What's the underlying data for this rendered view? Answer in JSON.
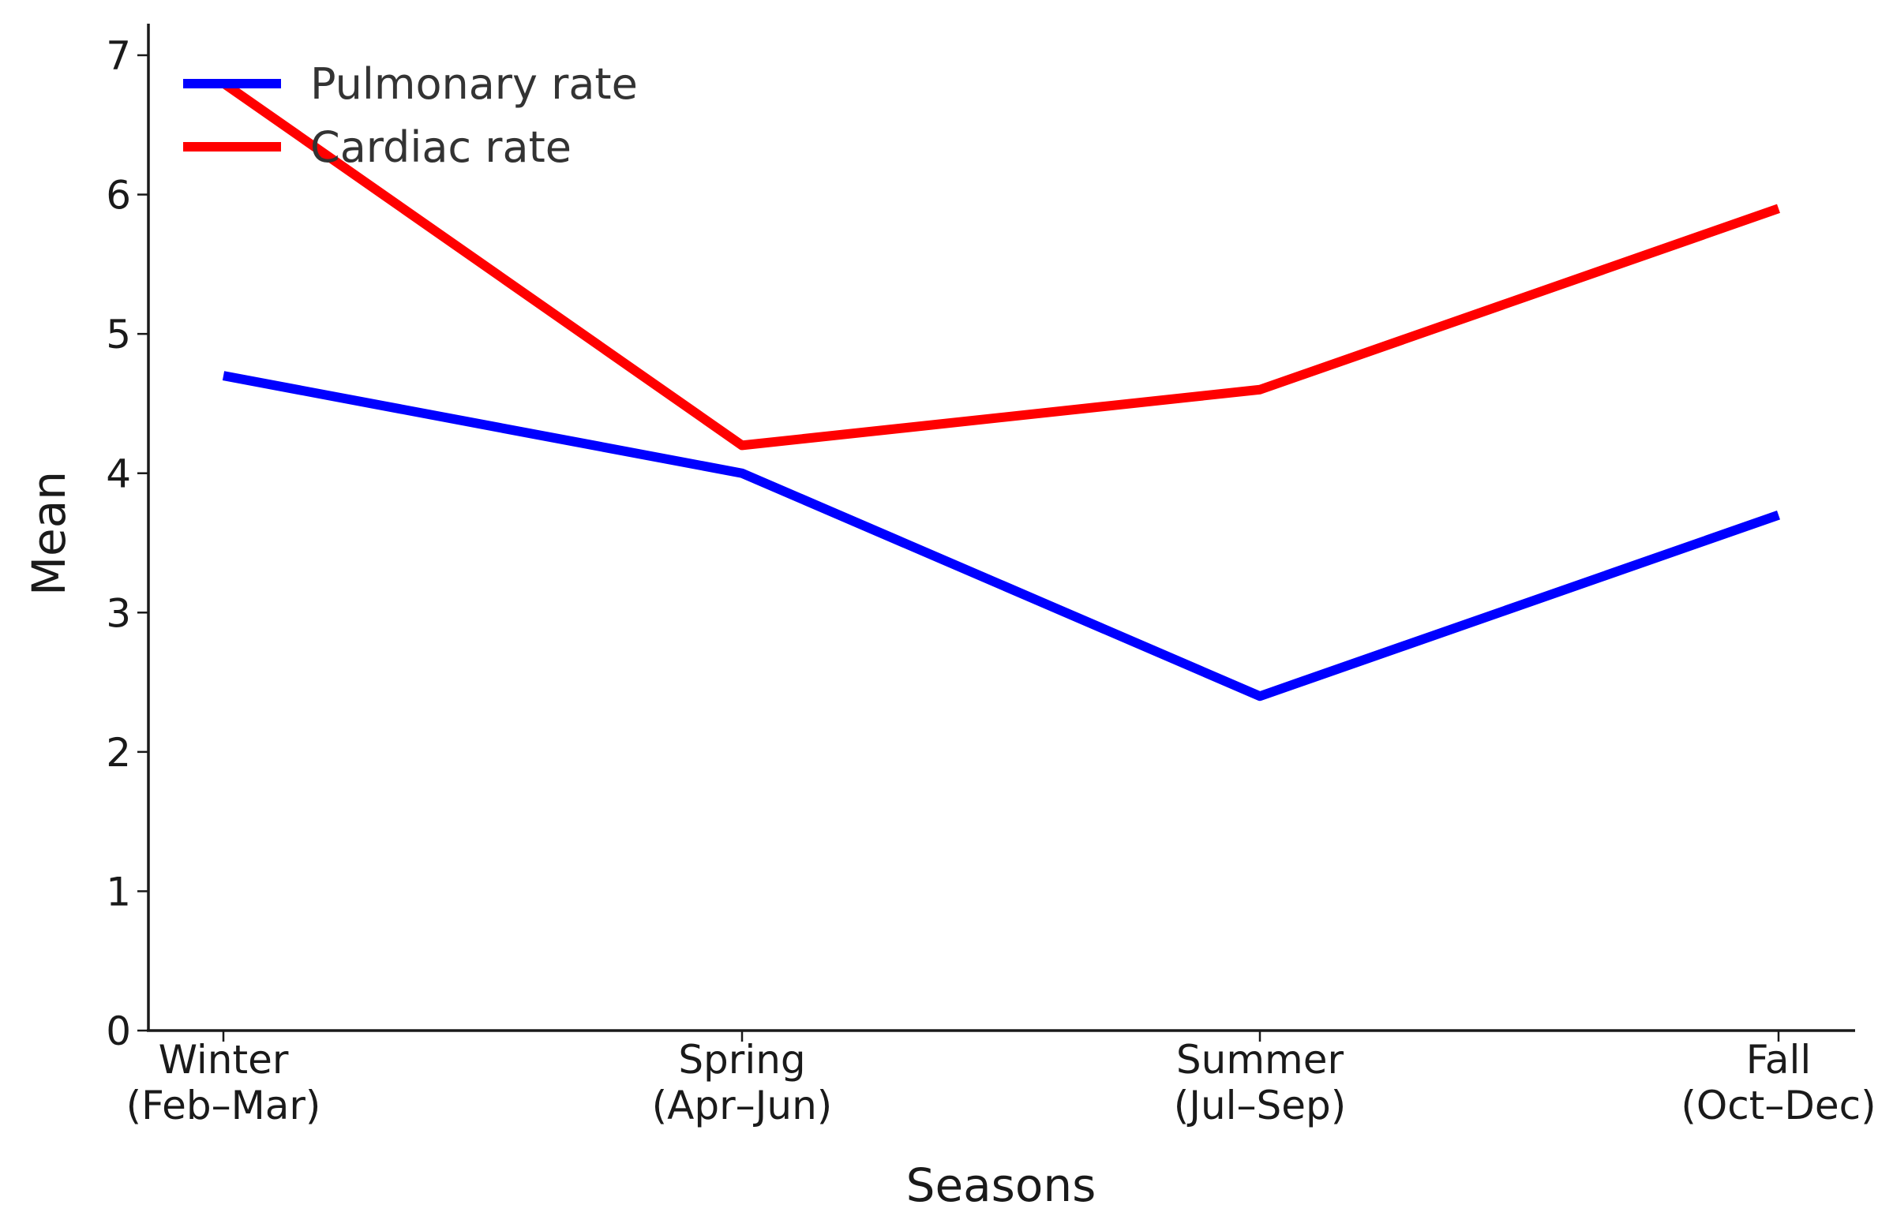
{
  "chart_data": {
    "type": "line",
    "title": "",
    "xlabel": "Seasons",
    "ylabel": "Mean",
    "categories": [
      [
        "Winter",
        "(Feb–Mar)"
      ],
      [
        "Spring",
        "(Apr–Jun)"
      ],
      [
        "Summer",
        "(Jul–Sep)"
      ],
      [
        "Fall",
        "(Oct–Dec)"
      ]
    ],
    "series": [
      {
        "name": "Pulmonary rate",
        "color": "#0000ff",
        "values": [
          4.7,
          4.0,
          2.4,
          3.7
        ]
      },
      {
        "name": "Cardiac rate",
        "color": "#ff0000",
        "values": [
          6.8,
          4.2,
          4.6,
          5.9
        ]
      }
    ],
    "ylim": [
      0,
      7.2
    ],
    "yticks": [
      0,
      1,
      2,
      3,
      4,
      5,
      6,
      7
    ],
    "grid": false,
    "legend": "top-left"
  }
}
